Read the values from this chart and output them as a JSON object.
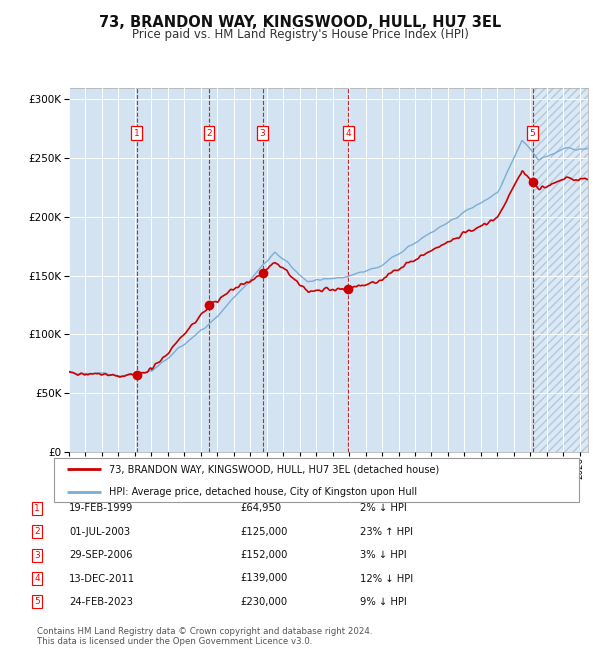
{
  "title": "73, BRANDON WAY, KINGSWOOD, HULL, HU7 3EL",
  "subtitle": "Price paid vs. HM Land Registry's House Price Index (HPI)",
  "ytick_values": [
    0,
    50000,
    100000,
    150000,
    200000,
    250000,
    300000
  ],
  "ylim": [
    0,
    310000
  ],
  "xlim_start": 1995.0,
  "xlim_end": 2026.5,
  "transactions": [
    {
      "num": 1,
      "date": "19-FEB-1999",
      "price": 64950,
      "year": 1999.12,
      "pct": "2%",
      "dir": "↓"
    },
    {
      "num": 2,
      "date": "01-JUL-2003",
      "price": 125000,
      "year": 2003.5,
      "pct": "23%",
      "dir": "↑"
    },
    {
      "num": 3,
      "date": "29-SEP-2006",
      "price": 152000,
      "year": 2006.75,
      "pct": "3%",
      "dir": "↓"
    },
    {
      "num": 4,
      "date": "13-DEC-2011",
      "price": 139000,
      "year": 2011.95,
      "pct": "12%",
      "dir": "↓"
    },
    {
      "num": 5,
      "date": "24-FEB-2023",
      "price": 230000,
      "year": 2023.14,
      "pct": "9%",
      "dir": "↓"
    }
  ],
  "legend_line1": "73, BRANDON WAY, KINGSWOOD, HULL, HU7 3EL (detached house)",
  "legend_line2": "HPI: Average price, detached house, City of Kingston upon Hull",
  "footer1": "Contains HM Land Registry data © Crown copyright and database right 2024.",
  "footer2": "This data is licensed under the Open Government Licence v3.0.",
  "line_color_red": "#cc0000",
  "line_color_blue": "#7aaed6",
  "bg_color": "#dce9f5",
  "grid_color": "#ffffff",
  "title_fontsize": 10.5,
  "subtitle_fontsize": 8.5
}
